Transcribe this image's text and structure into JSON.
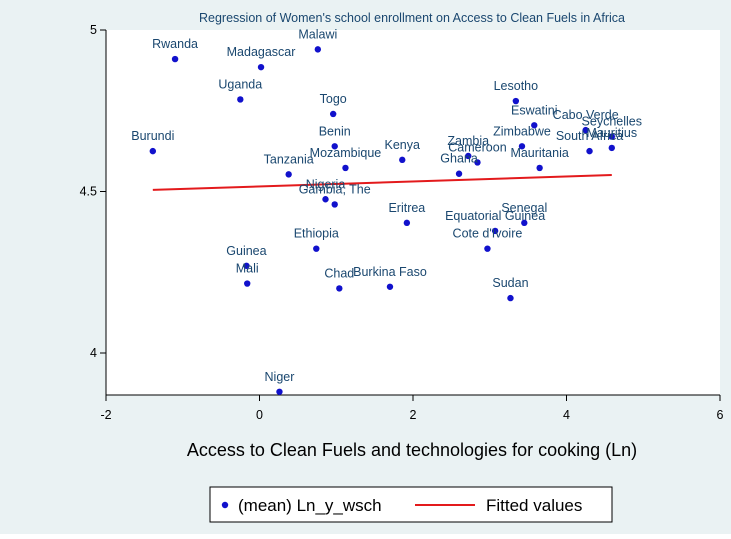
{
  "chart_data": {
    "type": "scatter",
    "title": "Regression of Women's school enrollment on Access to Clean Fuels in Africa",
    "xlabel": "Access to Clean Fuels and technologies for cooking (Ln)",
    "ylabel": "",
    "xlim": [
      -2,
      6
    ],
    "ylim": [
      3.87,
      5.0
    ],
    "xticks": [
      -2,
      0,
      2,
      4,
      6
    ],
    "yticks": [
      4,
      4.5,
      5
    ],
    "colors": {
      "points": "#1111cc",
      "fit": "#e31a1c",
      "text": "#1a476f",
      "background": "#eaf2f3",
      "plot_bg": "#ffffff"
    },
    "legend": {
      "position": "bottom",
      "entries": [
        {
          "label": "(mean) Ln_y_wsch",
          "marker": "dot"
        },
        {
          "label": "Fitted values",
          "marker": "line"
        }
      ]
    },
    "series": [
      {
        "name": "(mean) Ln_y_wsch",
        "kind": "scatter",
        "points": [
          {
            "label": "Rwanda",
            "x": -1.1,
            "y": 4.91
          },
          {
            "label": "Madagascar",
            "x": 0.02,
            "y": 4.885
          },
          {
            "label": "Malawi",
            "x": 0.76,
            "y": 4.94
          },
          {
            "label": "Uganda",
            "x": -0.25,
            "y": 4.785
          },
          {
            "label": "Togo",
            "x": 0.96,
            "y": 4.74
          },
          {
            "label": "Benin",
            "x": 0.98,
            "y": 4.64
          },
          {
            "label": "Burundi",
            "x": -1.39,
            "y": 4.625
          },
          {
            "label": "Tanzania",
            "x": 0.38,
            "y": 4.553
          },
          {
            "label": "Mozambique",
            "x": 1.12,
            "y": 4.573
          },
          {
            "label": "Nigeria",
            "x": 0.86,
            "y": 4.476
          },
          {
            "label": "Gambia, The",
            "x": 0.98,
            "y": 4.46
          },
          {
            "label": "Kenya",
            "x": 1.86,
            "y": 4.598
          },
          {
            "label": "Zambia",
            "x": 2.72,
            "y": 4.61
          },
          {
            "label": "Cameroon",
            "x": 2.84,
            "y": 4.59
          },
          {
            "label": "Ghana",
            "x": 2.6,
            "y": 4.555
          },
          {
            "label": "Lesotho",
            "x": 3.34,
            "y": 4.78
          },
          {
            "label": "Eswatini",
            "x": 3.58,
            "y": 4.705
          },
          {
            "label": "Zimbabwe",
            "x": 3.42,
            "y": 4.64
          },
          {
            "label": "Mauritania",
            "x": 3.65,
            "y": 4.573
          },
          {
            "label": "Cabo Verde",
            "x": 4.25,
            "y": 4.69
          },
          {
            "label": "South Africa",
            "x": 4.3,
            "y": 4.625
          },
          {
            "label": "Seychelles",
            "x": 4.59,
            "y": 4.67
          },
          {
            "label": "Mauritius",
            "x": 4.59,
            "y": 4.635
          },
          {
            "label": "Eritrea",
            "x": 1.92,
            "y": 4.403
          },
          {
            "label": "Senegal",
            "x": 3.45,
            "y": 4.403
          },
          {
            "label": "Equatorial Guinea",
            "x": 3.07,
            "y": 4.378
          },
          {
            "label": "Cote d'Ivoire",
            "x": 2.97,
            "y": 4.323
          },
          {
            "label": "Ethiopia",
            "x": 0.74,
            "y": 4.323
          },
          {
            "label": "Guinea",
            "x": -0.17,
            "y": 4.27
          },
          {
            "label": "Mali",
            "x": -0.16,
            "y": 4.215
          },
          {
            "label": "Chad",
            "x": 1.04,
            "y": 4.2
          },
          {
            "label": "Burkina Faso",
            "x": 1.7,
            "y": 4.205
          },
          {
            "label": "Sudan",
            "x": 3.27,
            "y": 4.17
          },
          {
            "label": "Niger",
            "x": 0.26,
            "y": 3.88
          }
        ]
      },
      {
        "name": "Fitted values",
        "kind": "line",
        "x": [
          -1.39,
          4.59
        ],
        "y": [
          4.505,
          4.551
        ]
      }
    ]
  }
}
